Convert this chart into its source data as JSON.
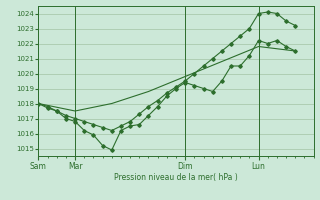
{
  "xlabel": "Pression niveau de la mer( hPa )",
  "background_color": "#cce8d8",
  "grid_color": "#99bb99",
  "line_color": "#2d6e2d",
  "ylim": [
    1014.5,
    1024.5
  ],
  "yticks": [
    1015,
    1016,
    1017,
    1018,
    1019,
    1020,
    1021,
    1022,
    1023,
    1024
  ],
  "day_labels": [
    "Sam",
    "Mar",
    "Dim",
    "Lun"
  ],
  "day_positions": [
    0,
    24,
    96,
    144
  ],
  "xlim": [
    0,
    180
  ],
  "line1_x": [
    0,
    6,
    12,
    18,
    24,
    30,
    36,
    42,
    48,
    54,
    60,
    66,
    72,
    78,
    84,
    90,
    96,
    102,
    108,
    114,
    120,
    126,
    132,
    138,
    144,
    150,
    156,
    162,
    168
  ],
  "line1_y": [
    1018.0,
    1017.7,
    1017.5,
    1017.0,
    1016.8,
    1016.2,
    1015.9,
    1015.2,
    1014.9,
    1016.2,
    1016.5,
    1016.6,
    1017.2,
    1017.8,
    1018.5,
    1019.0,
    1019.4,
    1019.2,
    1019.0,
    1018.8,
    1019.5,
    1020.5,
    1020.5,
    1021.2,
    1022.2,
    1022.0,
    1022.2,
    1021.8,
    1021.5
  ],
  "line2_x": [
    0,
    6,
    12,
    18,
    24,
    30,
    36,
    42,
    48,
    54,
    60,
    66,
    72,
    78,
    84,
    90,
    96,
    102,
    108,
    114,
    120,
    126,
    132,
    138,
    144,
    150,
    156,
    162,
    168
  ],
  "line2_y": [
    1018.0,
    1017.8,
    1017.5,
    1017.2,
    1017.0,
    1016.8,
    1016.6,
    1016.4,
    1016.2,
    1016.5,
    1016.8,
    1017.3,
    1017.8,
    1018.2,
    1018.7,
    1019.1,
    1019.5,
    1020.0,
    1020.5,
    1021.0,
    1021.5,
    1022.0,
    1022.5,
    1023.0,
    1024.0,
    1024.1,
    1024.0,
    1023.5,
    1023.2
  ],
  "line3_x": [
    0,
    24,
    48,
    72,
    96,
    120,
    144,
    168
  ],
  "line3_y": [
    1018.0,
    1017.5,
    1018.0,
    1018.8,
    1019.8,
    1020.8,
    1021.8,
    1021.5
  ]
}
